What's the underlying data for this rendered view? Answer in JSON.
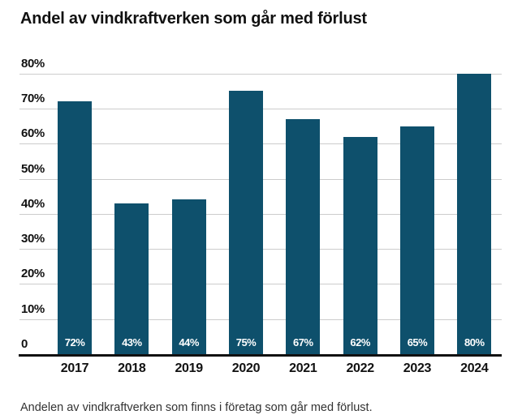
{
  "title": "Andel av vindkraftverken som går med förlust",
  "caption": "Andelen av vindkraftverken som finns i företag som går med förlust.",
  "colors": {
    "bar": "#0e506c",
    "gridline": "#cccccc",
    "axis": "#111111",
    "title_text": "#111111",
    "value_label_text": "#ffffff",
    "caption_text": "#333333",
    "background": "#ffffff"
  },
  "chart_data": {
    "type": "bar",
    "title": "Andel av vindkraftverken som går med förlust",
    "categories": [
      "2017",
      "2018",
      "2019",
      "2020",
      "2021",
      "2022",
      "2023",
      "2024"
    ],
    "values": [
      72,
      43,
      44,
      75,
      67,
      62,
      65,
      80
    ],
    "value_labels": [
      "72%",
      "43%",
      "44%",
      "75%",
      "67%",
      "62%",
      "65%",
      "80%"
    ],
    "xlabel": "",
    "ylabel": "",
    "ylim": [
      0,
      80
    ],
    "yticks": [
      {
        "value": 80,
        "label": "80%"
      },
      {
        "value": 70,
        "label": "70%"
      },
      {
        "value": 60,
        "label": "60%"
      },
      {
        "value": 50,
        "label": "50%"
      },
      {
        "value": 40,
        "label": "40%"
      },
      {
        "value": 30,
        "label": "30%"
      },
      {
        "value": 20,
        "label": "20%"
      },
      {
        "value": 10,
        "label": "10%"
      },
      {
        "value": 0,
        "label": "0"
      }
    ],
    "grid": true,
    "legend": false,
    "value_labels_position": "inside-bottom"
  }
}
